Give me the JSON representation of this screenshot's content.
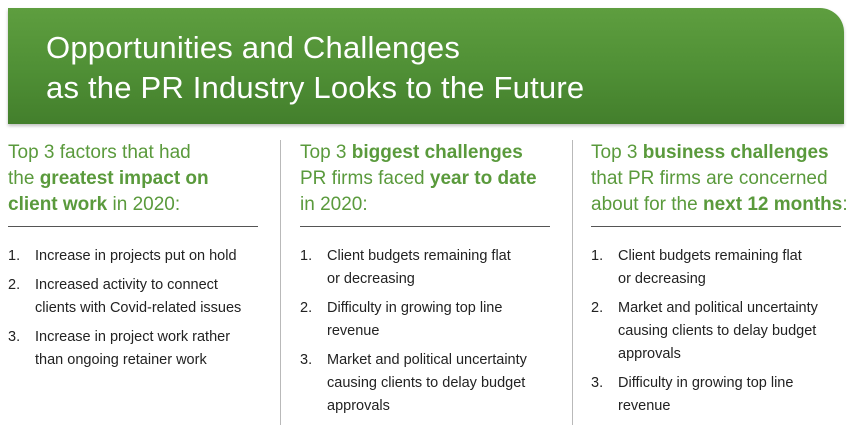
{
  "banner": {
    "title_line1": "Opportunities and Challenges",
    "title_line2": "as the PR Industry Looks to the Future",
    "color": "#4f8f35"
  },
  "accent_color": "#5a9a3c",
  "columns": [
    {
      "heading": [
        [
          {
            "t": "Top 3 factors that had",
            "b": false
          }
        ],
        [
          {
            "t": "the ",
            "b": false
          },
          {
            "t": "greatest impact on",
            "b": true
          }
        ],
        [
          {
            "t": "client work",
            "b": true
          },
          {
            "t": " in 2020:",
            "b": false
          }
        ]
      ],
      "items": [
        {
          "num": "1.",
          "lines": [
            "Increase in projects put on hold"
          ]
        },
        {
          "num": "2.",
          "lines": [
            "Increased activity to connect",
            "clients with Covid-related issues"
          ]
        },
        {
          "num": "3.",
          "lines": [
            "Increase in project work rather",
            "than ongoing retainer work"
          ]
        }
      ]
    },
    {
      "heading": [
        [
          {
            "t": "Top 3 ",
            "b": false
          },
          {
            "t": "biggest challenges",
            "b": true
          }
        ],
        [
          {
            "t": "PR firms faced ",
            "b": false
          },
          {
            "t": "year to date",
            "b": true
          }
        ],
        [
          {
            "t": "in 2020:",
            "b": false
          }
        ]
      ],
      "items": [
        {
          "num": "1.",
          "lines": [
            "Client budgets remaining flat",
            "or decreasing"
          ]
        },
        {
          "num": "2.",
          "lines": [
            "Difficulty in growing top line",
            "revenue"
          ]
        },
        {
          "num": "3.",
          "lines": [
            "Market and political uncertainty",
            "causing clients to delay budget",
            "approvals"
          ]
        }
      ]
    },
    {
      "heading": [
        [
          {
            "t": "Top 3 ",
            "b": false
          },
          {
            "t": "business challenges",
            "b": true
          }
        ],
        [
          {
            "t": "that PR firms are concerned",
            "b": false
          }
        ],
        [
          {
            "t": "about for the ",
            "b": false
          },
          {
            "t": "next 12 months",
            "b": true
          },
          {
            "t": ":",
            "b": false
          }
        ]
      ],
      "items": [
        {
          "num": "1.",
          "lines": [
            "Client budgets remaining flat",
            "or decreasing"
          ]
        },
        {
          "num": "2.",
          "lines": [
            "Market and political uncertainty",
            "causing clients to delay budget",
            "approvals"
          ]
        },
        {
          "num": "3.",
          "lines": [
            "Difficulty in growing top line",
            "revenue"
          ]
        }
      ]
    }
  ]
}
